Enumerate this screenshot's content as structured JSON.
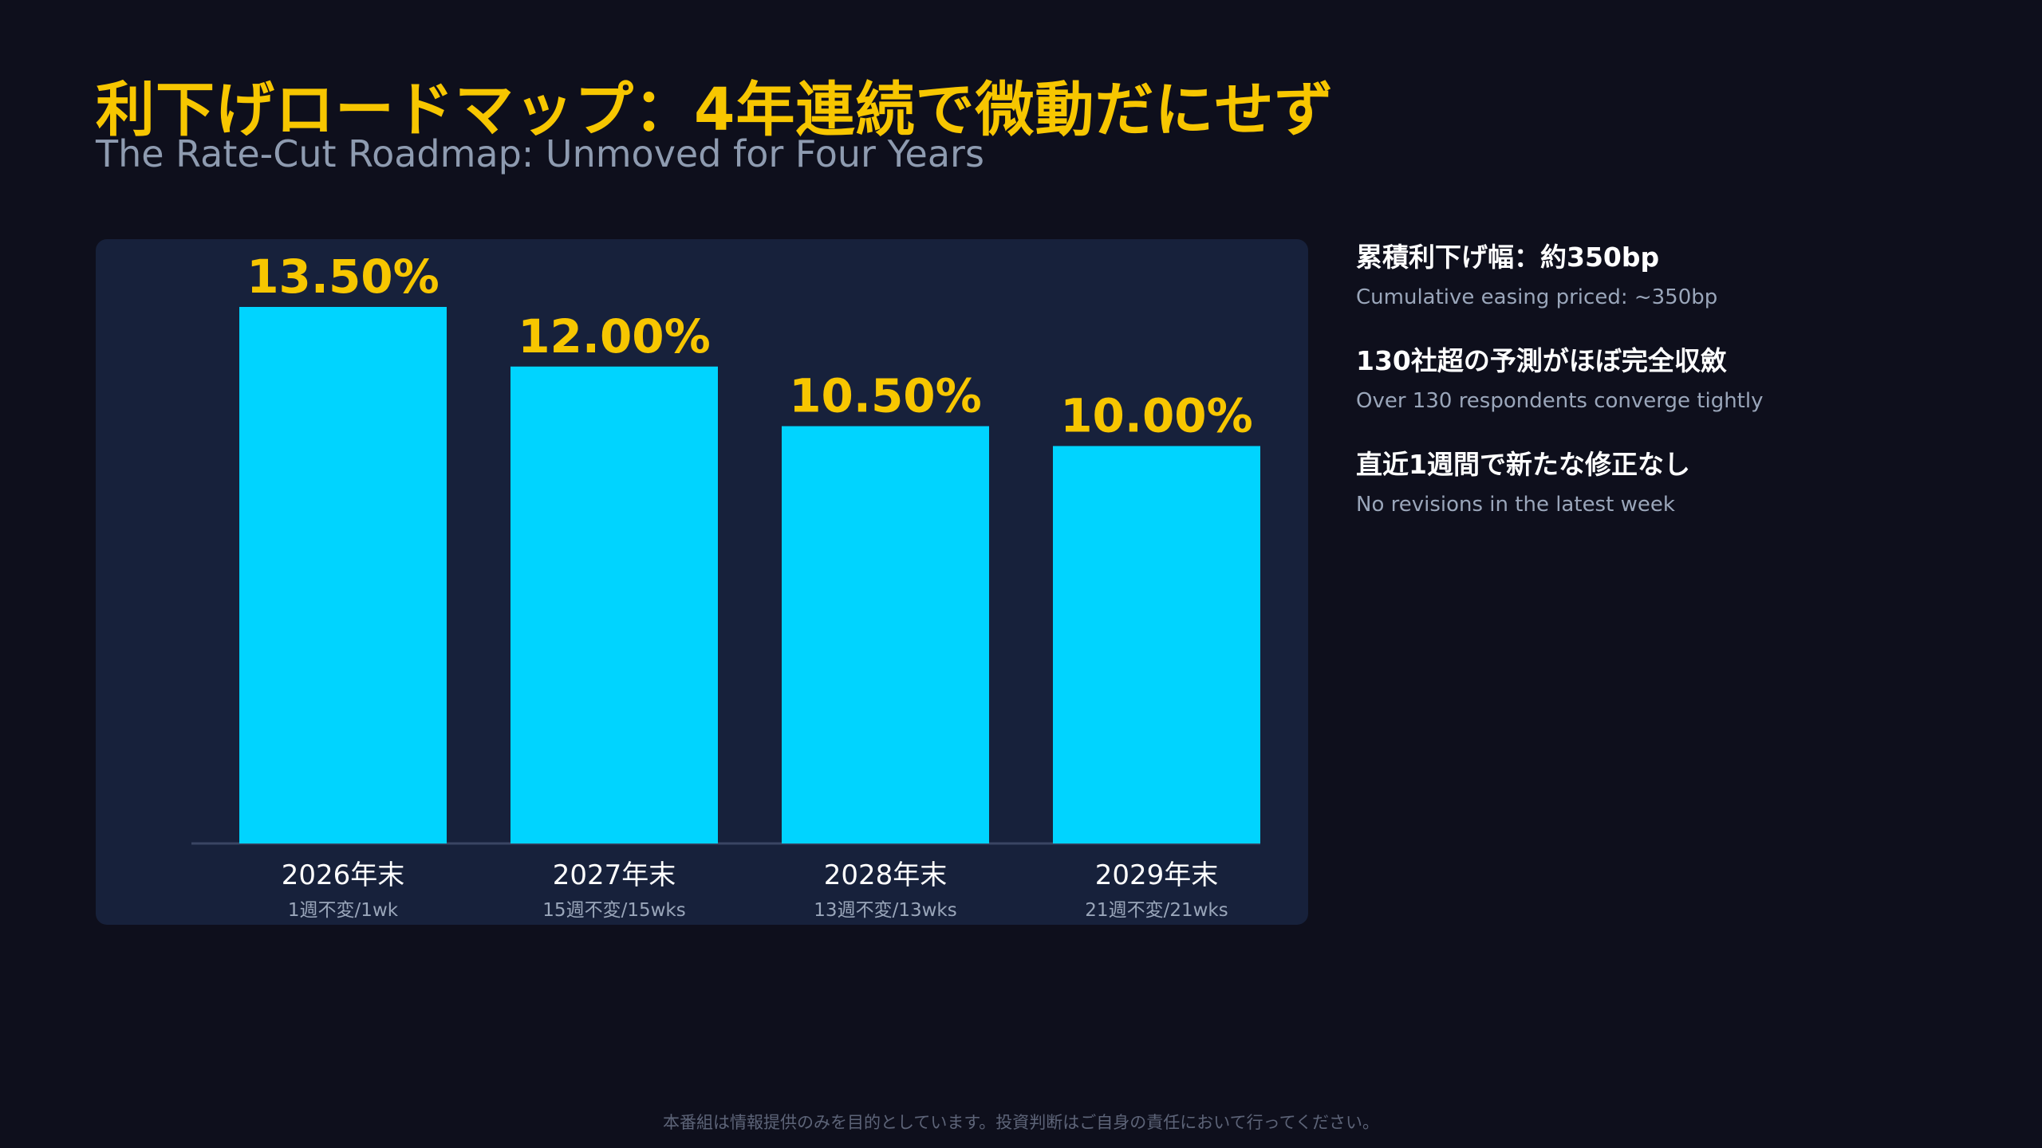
{
  "title": "利下げロードマップ：4年連続で微動だにせず",
  "subtitle": "The Rate-Cut Roadmap: Unmoved for Four Years",
  "colors": {
    "background": "#0e0f1c",
    "panel": "#17213b",
    "bar": "#00d4ff",
    "value_label": "#f7c600",
    "title": "#f7c600"
  },
  "chart_data": {
    "type": "bar",
    "categories": [
      "2026年末",
      "2027年末",
      "2028年末",
      "2029年末"
    ],
    "sublabels": [
      "1週不変/1wk",
      "15週不変/15wks",
      "13週不変/13wks",
      "21週不変/21wks"
    ],
    "values": [
      13.5,
      12.0,
      10.5,
      10.0
    ],
    "value_labels": [
      "13.50%",
      "12.00%",
      "10.50%",
      "10.00%"
    ],
    "ylim": [
      0,
      13.5
    ],
    "grid": false,
    "legend": "none"
  },
  "side_notes": [
    {
      "heading": "累積利下げ幅：約350bp",
      "sub": "Cumulative easing priced: ~350bp"
    },
    {
      "heading": "130社超の予測がほぼ完全収斂",
      "sub": "Over 130 respondents converge tightly"
    },
    {
      "heading": "直近1週間で新たな修正なし",
      "sub": "No revisions in the latest week"
    }
  ],
  "footer": "本番組は情報提供のみを目的としています。投資判断はご自身の責任において行ってください。"
}
